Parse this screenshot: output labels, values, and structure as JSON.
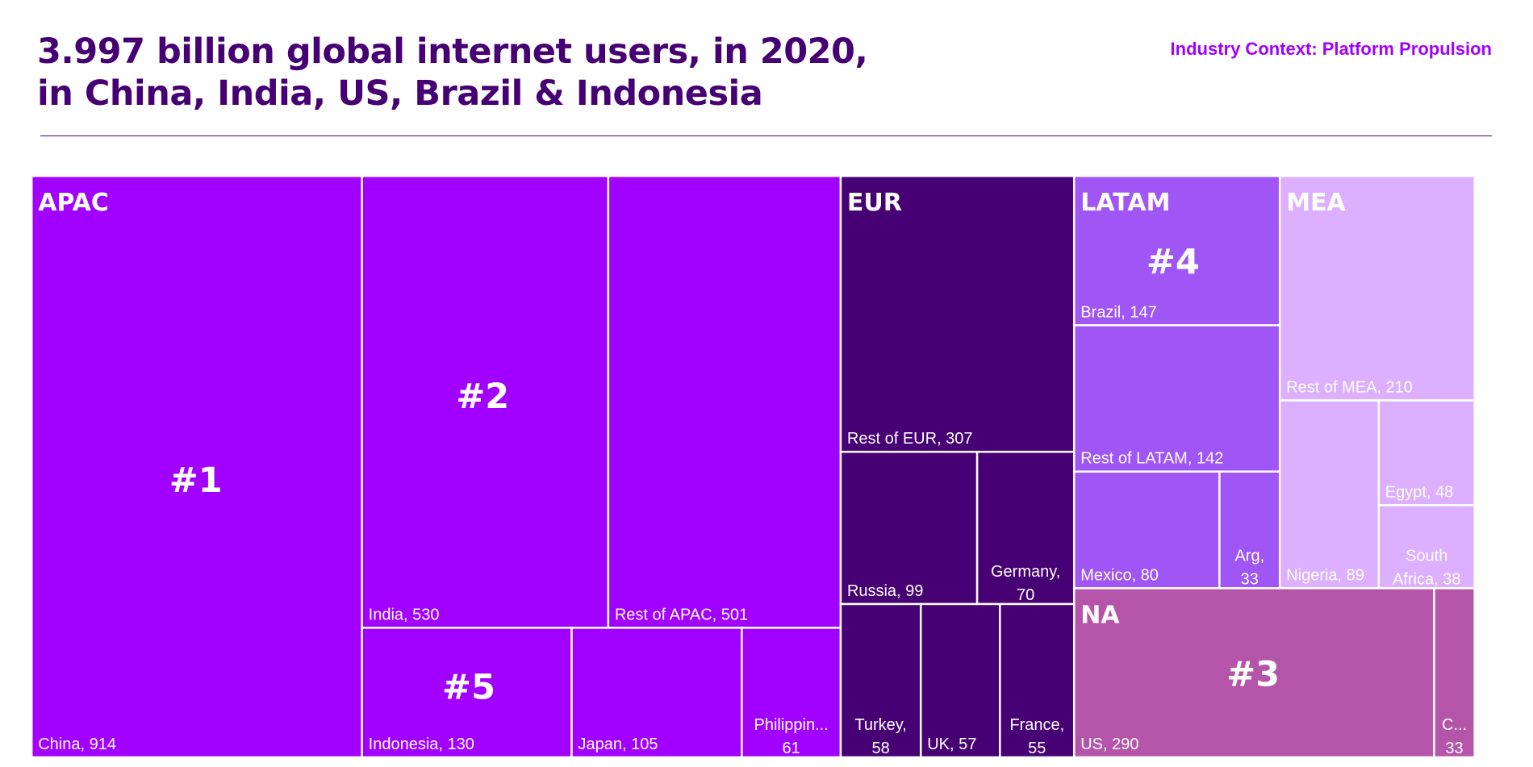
{
  "header": {
    "title_line1": "3.997 billion global internet users, in 2020,",
    "title_line2": "in China, India, US, Brazil & Indonesia",
    "context": "Industry Context: Platform Propulsion"
  },
  "colors": {
    "APAC": "#a100ff",
    "EUR": "#460073",
    "LATAM": "#a055f5",
    "MEA": "#dcafff",
    "NA": "#b455aa",
    "title": "#460073",
    "context": "#a100ff",
    "border": "#ffffff"
  },
  "chart_data": {
    "type": "treemap",
    "title": "3.997 billion global internet users, in 2020, in China, India, US, Brazil & Indonesia",
    "unit": "",
    "regions": [
      {
        "name": "APAC",
        "items": [
          {
            "label": "China",
            "value": 914,
            "display": "China, 914",
            "rank": "#1"
          },
          {
            "label": "India",
            "value": 530,
            "display": "India, 530",
            "rank": "#2"
          },
          {
            "label": "Rest of APAC",
            "value": 501,
            "display": "Rest of APAC, 501"
          },
          {
            "label": "Indonesia",
            "value": 130,
            "display": "Indonesia, 130",
            "rank": "#5"
          },
          {
            "label": "Japan",
            "value": 105,
            "display": "Japan, 105"
          },
          {
            "label": "Philippines",
            "value": 61,
            "display": "Philippin... 61"
          }
        ]
      },
      {
        "name": "EUR",
        "items": [
          {
            "label": "Rest of EUR",
            "value": 307,
            "display": "Rest of EUR, 307"
          },
          {
            "label": "Russia",
            "value": 99,
            "display": "Russia, 99"
          },
          {
            "label": "Germany",
            "value": 70,
            "display": "Germany, 70"
          },
          {
            "label": "Turkey",
            "value": 58,
            "display": "Turkey, 58"
          },
          {
            "label": "UK",
            "value": 57,
            "display": "UK, 57"
          },
          {
            "label": "France",
            "value": 55,
            "display": "France, 55"
          }
        ]
      },
      {
        "name": "LATAM",
        "items": [
          {
            "label": "Brazil",
            "value": 147,
            "display": "Brazil, 147",
            "rank": "#4"
          },
          {
            "label": "Rest of LATAM",
            "value": 142,
            "display": "Rest of LATAM, 142"
          },
          {
            "label": "Mexico",
            "value": 80,
            "display": "Mexico, 80"
          },
          {
            "label": "Argentina",
            "value": 33,
            "display": "Arg, 33"
          }
        ]
      },
      {
        "name": "MEA",
        "items": [
          {
            "label": "Rest of MEA",
            "value": 210,
            "display": "Rest of MEA, 210"
          },
          {
            "label": "Nigeria",
            "value": 89,
            "display": "Nigeria, 89"
          },
          {
            "label": "Egypt",
            "value": 48,
            "display": "Egypt, 48"
          },
          {
            "label": "South Africa",
            "value": 38,
            "display": "South Africa, 38"
          }
        ]
      },
      {
        "name": "NA",
        "items": [
          {
            "label": "US",
            "value": 290,
            "display": "US, 290",
            "rank": "#3"
          },
          {
            "label": "Canada",
            "value": 33,
            "display": "C... 33"
          }
        ]
      }
    ]
  }
}
